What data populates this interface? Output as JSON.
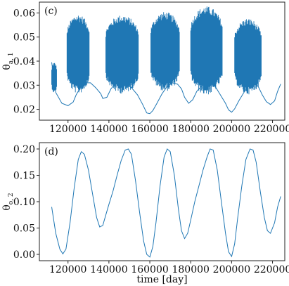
{
  "colors": {
    "series": "#1f77b4",
    "frame": "#222222",
    "background": "#ffffff"
  },
  "chart_data": [
    {
      "type": "line",
      "panel_label": "(c)",
      "ylabel_main": "θ",
      "ylabel_sub": "a, 1",
      "xlabel": "",
      "xlim": [
        106000,
        226000
      ],
      "ylim": [
        0.0155,
        0.0645
      ],
      "x_ticks": [
        120000,
        140000,
        160000,
        180000,
        200000,
        220000
      ],
      "x_tick_labels": [
        "120000",
        "140000",
        "160000",
        "180000",
        "200000",
        "220000"
      ],
      "y_ticks": [
        0.02,
        0.03,
        0.04,
        0.05,
        0.06
      ],
      "y_tick_labels": [
        "0.02",
        "0.03",
        "0.04",
        "0.05",
        "0.06"
      ],
      "grid": false,
      "series": [
        {
          "style": "baseline_with_oscillation_bands",
          "baseline_x": [
            112000,
            114000,
            117000,
            120000,
            122500,
            124000,
            126000,
            128500,
            131000,
            133500,
            136000,
            137000,
            139000,
            141000,
            143000,
            145000,
            148000,
            151000,
            154000,
            156500,
            158500,
            160000,
            161500,
            163500,
            166000,
            168500,
            171000,
            173500,
            175500,
            177000,
            179000,
            181000,
            183000,
            186000,
            189000,
            192000,
            194500,
            197000,
            198500,
            200000,
            201500,
            203500,
            206000,
            208500,
            211000,
            213000,
            215000,
            217000,
            219000,
            221000,
            222500,
            224000
          ],
          "baseline_y": [
            0.0395,
            0.027,
            0.0225,
            0.0215,
            0.023,
            0.026,
            0.029,
            0.031,
            0.031,
            0.029,
            0.0265,
            0.0245,
            0.025,
            0.0285,
            0.0305,
            0.031,
            0.0305,
            0.029,
            0.026,
            0.022,
            0.0185,
            0.0182,
            0.0195,
            0.0225,
            0.0265,
            0.0295,
            0.031,
            0.0305,
            0.0285,
            0.025,
            0.0225,
            0.024,
            0.0275,
            0.0303,
            0.031,
            0.0295,
            0.026,
            0.0225,
            0.0198,
            0.0188,
            0.0202,
            0.0235,
            0.027,
            0.0298,
            0.031,
            0.0295,
            0.026,
            0.0232,
            0.022,
            0.0235,
            0.0275,
            0.0305
          ],
          "bands": [
            {
              "x_start": 112000,
              "x_end": 114500,
              "y_min": 0.0268,
              "y_max": 0.0395
            },
            {
              "x_start": 119500,
              "x_end": 130500,
              "y_min": 0.0265,
              "y_max": 0.0595
            },
            {
              "x_start": 138500,
              "x_end": 154500,
              "y_min": 0.0265,
              "y_max": 0.0592
            },
            {
              "x_start": 160500,
              "x_end": 174500,
              "y_min": 0.0275,
              "y_max": 0.0605
            },
            {
              "x_start": 180000,
              "x_end": 195500,
              "y_min": 0.026,
              "y_max": 0.0628
            },
            {
              "x_start": 201500,
              "x_end": 214500,
              "y_min": 0.0262,
              "y_max": 0.0578
            }
          ]
        }
      ]
    },
    {
      "type": "line",
      "panel_label": "(d)",
      "ylabel_main": "θ",
      "ylabel_sub": "o, 2",
      "xlabel": "time [day]",
      "xlim": [
        106000,
        226000
      ],
      "ylim": [
        -0.012,
        0.212
      ],
      "x_ticks": [
        120000,
        140000,
        160000,
        180000,
        200000,
        220000
      ],
      "x_tick_labels": [
        "120000",
        "140000",
        "160000",
        "180000",
        "200000",
        "220000"
      ],
      "y_ticks": [
        0.0,
        0.05,
        0.1,
        0.15,
        0.2
      ],
      "y_tick_labels": [
        "0.00",
        "0.05",
        "0.10",
        "0.15",
        "0.20"
      ],
      "grid": false,
      "series": [
        {
          "style": "line",
          "x": [
            112000,
            114000,
            116000,
            117500,
            119000,
            121000,
            123000,
            125000,
            126500,
            128000,
            130000,
            132000,
            134000,
            135500,
            137000,
            138500,
            140000,
            142000,
            144000,
            146000,
            148000,
            149500,
            151000,
            153000,
            155000,
            157000,
            158500,
            160000,
            161500,
            163000,
            165000,
            167000,
            168500,
            170000,
            172000,
            174000,
            175500,
            177000,
            178500,
            180000,
            182000,
            184000,
            186000,
            188000,
            189500,
            191000,
            193000,
            195000,
            197000,
            198500,
            200000,
            201500,
            203000,
            205000,
            207000,
            209000,
            210500,
            212000,
            214000,
            216000,
            217500,
            219000,
            221000,
            222500,
            224000
          ],
          "y": [
            0.09,
            0.04,
            0.01,
            0.001,
            0.01,
            0.06,
            0.125,
            0.18,
            0.195,
            0.19,
            0.16,
            0.115,
            0.07,
            0.052,
            0.055,
            0.075,
            0.095,
            0.12,
            0.15,
            0.178,
            0.198,
            0.2,
            0.19,
            0.14,
            0.08,
            0.025,
            0.0,
            -0.005,
            0.015,
            0.06,
            0.13,
            0.185,
            0.2,
            0.195,
            0.15,
            0.085,
            0.045,
            0.03,
            0.04,
            0.065,
            0.1,
            0.13,
            0.16,
            0.185,
            0.2,
            0.198,
            0.16,
            0.1,
            0.04,
            0.005,
            -0.004,
            0.02,
            0.07,
            0.13,
            0.18,
            0.2,
            0.198,
            0.175,
            0.12,
            0.07,
            0.045,
            0.04,
            0.06,
            0.09,
            0.11
          ]
        }
      ]
    }
  ]
}
